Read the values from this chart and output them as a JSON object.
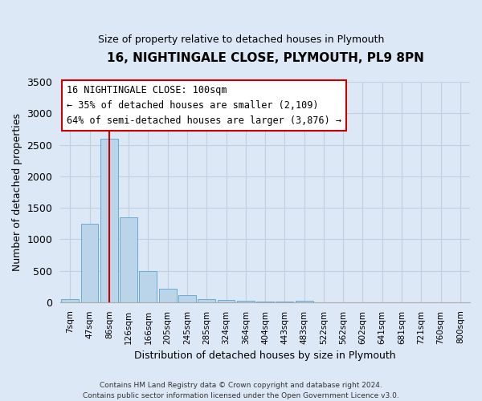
{
  "title_line1": "16, NIGHTINGALE CLOSE, PLYMOUTH, PL9 8PN",
  "title_line2": "Size of property relative to detached houses in Plymouth",
  "xlabel": "Distribution of detached houses by size in Plymouth",
  "ylabel": "Number of detached properties",
  "bar_labels": [
    "7sqm",
    "47sqm",
    "86sqm",
    "126sqm",
    "166sqm",
    "205sqm",
    "245sqm",
    "285sqm",
    "324sqm",
    "364sqm",
    "404sqm",
    "443sqm",
    "483sqm",
    "522sqm",
    "562sqm",
    "602sqm",
    "641sqm",
    "681sqm",
    "721sqm",
    "760sqm",
    "800sqm"
  ],
  "bar_values": [
    50,
    1250,
    2590,
    1350,
    500,
    210,
    110,
    50,
    40,
    25,
    10,
    5,
    25,
    0,
    0,
    0,
    0,
    0,
    0,
    0,
    0
  ],
  "bar_color": "#bad4ea",
  "bar_edgecolor": "#6aaad4",
  "vline_x_index": 2,
  "vline_color": "#cc0000",
  "ylim": [
    0,
    3500
  ],
  "yticks": [
    0,
    500,
    1000,
    1500,
    2000,
    2500,
    3000,
    3500
  ],
  "annotation_title": "16 NIGHTINGALE CLOSE: 100sqm",
  "annotation_line2": "← 35% of detached houses are smaller (2,109)",
  "annotation_line3": "64% of semi-detached houses are larger (3,876) →",
  "annotation_box_facecolor": "white",
  "annotation_box_edgecolor": "#cc0000",
  "footer_line1": "Contains HM Land Registry data © Crown copyright and database right 2024.",
  "footer_line2": "Contains public sector information licensed under the Open Government Licence v3.0.",
  "bg_color": "#dce8f5",
  "plot_bg_color": "#dce8f5",
  "grid_color": "#c0d0e0",
  "spine_color": "#aaaaaa"
}
